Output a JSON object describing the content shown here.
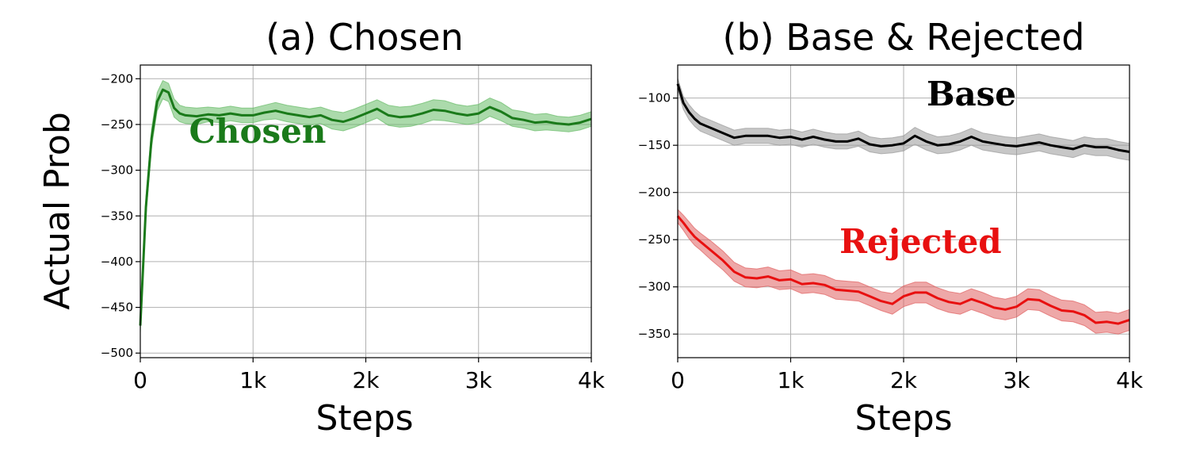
{
  "chart_data": [
    {
      "type": "line",
      "title": "(a) Chosen",
      "xlabel": "Steps",
      "ylabel": "Actual Prob",
      "xlim": [
        0,
        4000
      ],
      "ylim": [
        -505,
        -185
      ],
      "xticks": [
        0,
        1000,
        2000,
        3000,
        4000
      ],
      "xtick_labels": [
        "0",
        "1k",
        "2k",
        "3k",
        "4k"
      ],
      "yticks": [
        -500,
        -450,
        -400,
        -350,
        -300,
        -250,
        -200
      ],
      "ytick_labels": [
        "−500",
        "−450",
        "−400",
        "−350",
        "−300",
        "−250",
        "−200"
      ],
      "grid": true,
      "series": [
        {
          "name": "Chosen",
          "color": "#1a7a1a",
          "band_color": "#66bb66",
          "x": [
            0,
            50,
            100,
            150,
            200,
            250,
            300,
            350,
            400,
            500,
            600,
            700,
            800,
            900,
            1000,
            1100,
            1200,
            1300,
            1400,
            1500,
            1600,
            1700,
            1800,
            1900,
            2000,
            2100,
            2200,
            2300,
            2400,
            2500,
            2600,
            2700,
            2800,
            2900,
            3000,
            3100,
            3200,
            3300,
            3400,
            3500,
            3600,
            3700,
            3800,
            3900,
            4000
          ],
          "y": [
            -470,
            -340,
            -265,
            -225,
            -212,
            -215,
            -232,
            -238,
            -240,
            -241,
            -239,
            -240,
            -238,
            -240,
            -240,
            -237,
            -235,
            -238,
            -240,
            -242,
            -240,
            -245,
            -247,
            -243,
            -238,
            -233,
            -240,
            -242,
            -241,
            -238,
            -234,
            -235,
            -238,
            -240,
            -238,
            -231,
            -236,
            -243,
            -245,
            -248,
            -247,
            -249,
            -250,
            -248,
            -244
          ],
          "band": [
            8,
            10,
            10,
            10,
            10,
            10,
            10,
            9,
            9,
            9,
            8,
            8,
            8,
            8,
            8,
            8,
            9,
            9,
            9,
            9,
            9,
            10,
            10,
            10,
            10,
            10,
            11,
            11,
            11,
            11,
            11,
            11,
            10,
            10,
            10,
            10,
            10,
            9,
            9,
            9,
            9,
            8,
            8,
            8,
            8
          ],
          "label_pos": [
            1040,
            -270
          ]
        }
      ]
    },
    {
      "type": "line",
      "title": "(b) Base & Rejected",
      "xlabel": "Steps",
      "ylabel": "",
      "xlim": [
        0,
        4000
      ],
      "ylim": [
        -375,
        -65
      ],
      "xticks": [
        0,
        1000,
        2000,
        3000,
        4000
      ],
      "xtick_labels": [
        "0",
        "1k",
        "2k",
        "3k",
        "4k"
      ],
      "yticks": [
        -350,
        -300,
        -250,
        -200,
        -150,
        -100
      ],
      "ytick_labels": [
        "−350",
        "−300",
        "−250",
        "−200",
        "−150",
        "−100"
      ],
      "grid": true,
      "series": [
        {
          "name": "Base",
          "color": "#000000",
          "band_color": "#999999",
          "x": [
            0,
            50,
            100,
            150,
            200,
            300,
            400,
            500,
            600,
            700,
            800,
            900,
            1000,
            1100,
            1200,
            1300,
            1400,
            1500,
            1600,
            1700,
            1800,
            1900,
            2000,
            2100,
            2200,
            2300,
            2400,
            2500,
            2600,
            2700,
            2800,
            2900,
            3000,
            3100,
            3200,
            3300,
            3400,
            3500,
            3600,
            3700,
            3800,
            3900,
            4000
          ],
          "y": [
            -85,
            -105,
            -115,
            -122,
            -127,
            -132,
            -137,
            -142,
            -140,
            -140,
            -140,
            -142,
            -141,
            -144,
            -141,
            -144,
            -146,
            -146,
            -143,
            -149,
            -151,
            -150,
            -148,
            -140,
            -146,
            -150,
            -149,
            -146,
            -141,
            -146,
            -148,
            -150,
            -151,
            -149,
            -147,
            -150,
            -152,
            -154,
            -150,
            -152,
            -152,
            -155,
            -157
          ],
          "band": [
            6,
            7,
            8,
            8,
            8,
            8,
            8,
            8,
            8,
            8,
            8,
            8,
            8,
            8,
            8,
            8,
            8,
            8,
            8,
            8,
            8,
            8,
            8,
            9,
            9,
            9,
            9,
            9,
            9,
            9,
            9,
            9,
            9,
            9,
            9,
            9,
            9,
            9,
            9,
            9,
            9,
            9,
            9
          ],
          "label_pos": [
            2600,
            -108
          ]
        },
        {
          "name": "Rejected",
          "color": "#e81010",
          "band_color": "#e06060",
          "x": [
            0,
            50,
            100,
            150,
            200,
            300,
            400,
            500,
            600,
            700,
            800,
            900,
            1000,
            1100,
            1200,
            1300,
            1400,
            1500,
            1600,
            1700,
            1800,
            1900,
            2000,
            2100,
            2200,
            2300,
            2400,
            2500,
            2600,
            2700,
            2800,
            2900,
            3000,
            3100,
            3200,
            3300,
            3400,
            3500,
            3600,
            3700,
            3800,
            3900,
            4000
          ],
          "y": [
            -225,
            -232,
            -240,
            -247,
            -252,
            -262,
            -272,
            -284,
            -290,
            -291,
            -289,
            -293,
            -292,
            -297,
            -296,
            -298,
            -303,
            -304,
            -305,
            -310,
            -315,
            -318,
            -310,
            -306,
            -306,
            -312,
            -316,
            -318,
            -313,
            -317,
            -322,
            -324,
            -321,
            -313,
            -314,
            -320,
            -325,
            -326,
            -330,
            -338,
            -337,
            -339,
            -335
          ],
          "band": [
            7,
            8,
            9,
            9,
            9,
            10,
            10,
            10,
            10,
            10,
            10,
            10,
            10,
            10,
            10,
            10,
            10,
            10,
            10,
            10,
            10,
            11,
            11,
            11,
            11,
            11,
            11,
            11,
            11,
            11,
            11,
            11,
            11,
            11,
            11,
            11,
            11,
            11,
            11,
            11,
            11,
            11,
            11
          ],
          "label_pos": [
            2150,
            -264
          ]
        }
      ]
    }
  ]
}
